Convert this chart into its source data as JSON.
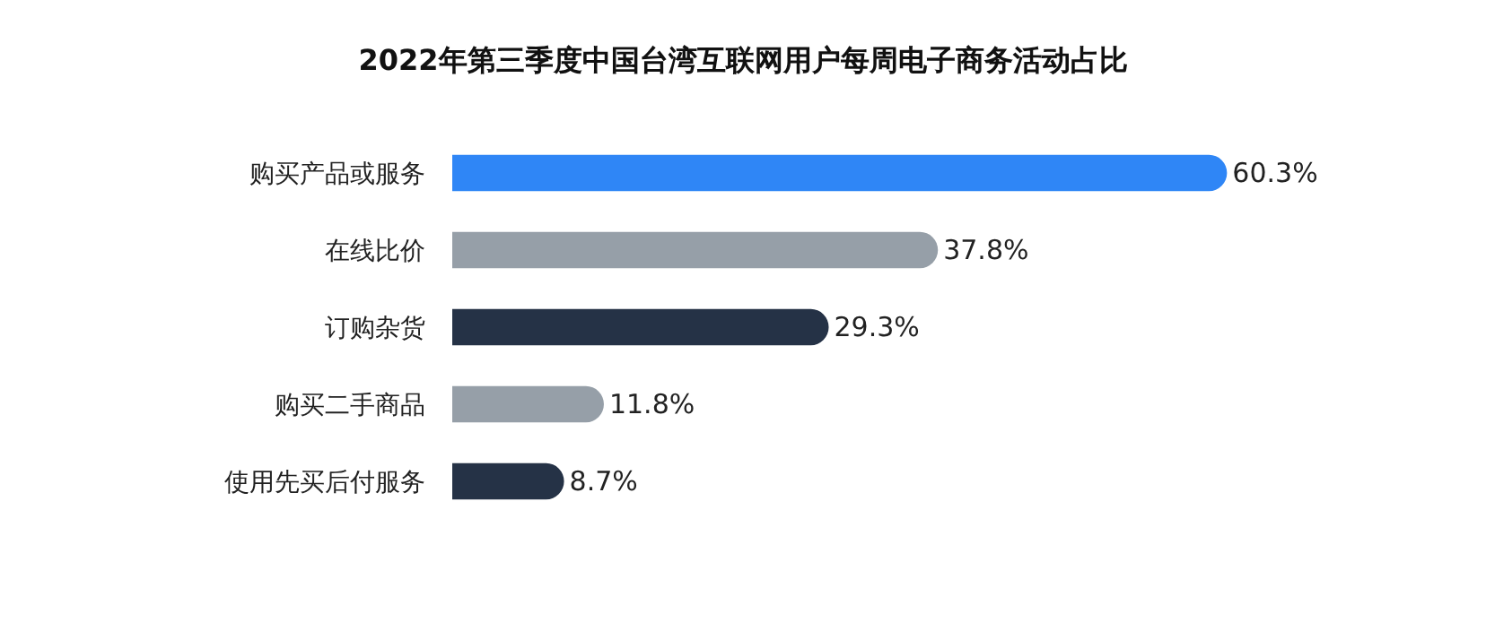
{
  "chart_data": {
    "type": "bar",
    "orientation": "horizontal",
    "title": "2022年第三季度中国台湾互联网用户每周电子商务活动占比",
    "categories": [
      "购买产品或服务",
      "在线比价",
      "订购杂货",
      "购买二手商品",
      "使用先买后付服务"
    ],
    "values": [
      60.3,
      37.8,
      29.3,
      11.8,
      8.7
    ],
    "colors": [
      "#2f86f6",
      "#969fa8",
      "#253246",
      "#969fa8",
      "#253246"
    ],
    "value_labels": [
      "60.3%",
      "37.8%",
      "29.3%",
      "11.8%",
      "8.7%"
    ],
    "grid": false,
    "legend": false
  }
}
